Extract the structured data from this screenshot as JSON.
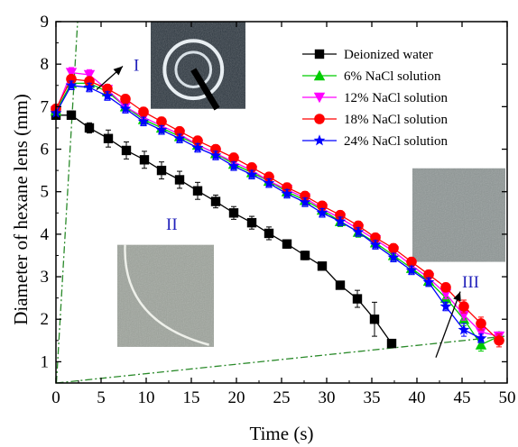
{
  "chart_data": {
    "type": "line",
    "xlabel": "Time (s)",
    "ylabel": "Diameter of hexane lens (mm)",
    "xlim": [
      0,
      50
    ],
    "ylim": [
      0.5,
      9
    ],
    "xticks": [
      0,
      5,
      10,
      15,
      20,
      25,
      30,
      35,
      40,
      45,
      50
    ],
    "yticks": [
      1,
      2,
      3,
      4,
      5,
      6,
      7,
      8,
      9
    ],
    "legend_position": "top-right",
    "grid": false,
    "series": [
      {
        "name": "Deionized water",
        "color": "#000000",
        "marker": "square",
        "x": [
          0,
          1.7,
          3.7,
          5.8,
          7.8,
          9.8,
          11.7,
          13.7,
          15.7,
          17.7,
          19.7,
          21.7,
          23.6,
          25.6,
          27.6,
          29.5,
          31.5,
          33.4,
          35.3,
          37.2
        ],
        "y": [
          6.8,
          6.8,
          6.5,
          6.25,
          5.97,
          5.75,
          5.5,
          5.28,
          5.02,
          4.77,
          4.5,
          4.27,
          4.02,
          3.77,
          3.5,
          3.25,
          2.8,
          2.48,
          2.0,
          1.43
        ],
        "err": [
          0,
          0.1,
          0.12,
          0.2,
          0.2,
          0.2,
          0.2,
          0.2,
          0.2,
          0.15,
          0.15,
          0.15,
          0.15,
          0.1,
          0.1,
          0,
          0.05,
          0.2,
          0.4,
          0
        ]
      },
      {
        "name": "6% NaCl solution",
        "color": "#00cc00",
        "marker": "triangle-up",
        "x": [
          0,
          1.7,
          3.7,
          5.7,
          7.7,
          9.7,
          11.7,
          13.7,
          15.7,
          17.7,
          19.7,
          21.7,
          23.6,
          25.6,
          27.6,
          29.5,
          31.5,
          33.5,
          35.4,
          37.4,
          39.4,
          41.3,
          43.2,
          45.2,
          47.1,
          49.1
        ],
        "y": [
          6.9,
          7.55,
          7.55,
          7.35,
          7.0,
          6.7,
          6.5,
          6.3,
          6.1,
          5.9,
          5.65,
          5.45,
          5.25,
          5.0,
          4.8,
          4.57,
          4.3,
          4.05,
          3.8,
          3.5,
          3.2,
          2.9,
          2.5,
          2.0,
          1.4,
          1.6
        ],
        "err": [
          0,
          0.15,
          0.12,
          0.12,
          0.12,
          0.12,
          0.12,
          0.12,
          0.12,
          0.12,
          0.12,
          0.12,
          0.12,
          0.12,
          0.12,
          0.12,
          0.12,
          0.12,
          0.12,
          0.12,
          0.12,
          0.12,
          0.12,
          0.15,
          0.15,
          0.1
        ]
      },
      {
        "name": "12% NaCl solution",
        "color": "#ff00ff",
        "marker": "triangle-down",
        "x": [
          0,
          1.7,
          3.7,
          5.7,
          7.7,
          9.7,
          11.7,
          13.7,
          15.7,
          17.7,
          19.7,
          21.7,
          23.6,
          25.6,
          27.6,
          29.5,
          31.5,
          33.5,
          35.4,
          37.4,
          39.4,
          41.3,
          43.2,
          45.2,
          47.1,
          49.1
        ],
        "y": [
          6.9,
          7.8,
          7.75,
          7.4,
          7.0,
          6.75,
          6.55,
          6.35,
          6.1,
          5.9,
          5.7,
          5.5,
          5.25,
          5.05,
          4.85,
          4.6,
          4.38,
          4.12,
          3.87,
          3.6,
          3.27,
          2.97,
          2.6,
          2.1,
          1.7,
          1.6
        ],
        "err": [
          0,
          0.12,
          0.12,
          0.12,
          0.12,
          0.12,
          0.12,
          0.12,
          0.12,
          0.12,
          0.12,
          0.12,
          0.12,
          0.12,
          0.12,
          0.12,
          0.12,
          0.12,
          0.12,
          0.12,
          0.12,
          0.12,
          0.12,
          0.12,
          0.1,
          0.1
        ]
      },
      {
        "name": "18% NaCl solution",
        "color": "#ff0000",
        "marker": "circle",
        "x": [
          0,
          1.7,
          3.7,
          5.7,
          7.7,
          9.7,
          11.7,
          13.7,
          15.7,
          17.7,
          19.7,
          21.7,
          23.6,
          25.6,
          27.6,
          29.5,
          31.5,
          33.5,
          35.4,
          37.4,
          39.4,
          41.3,
          43.2,
          45.2,
          47.1,
          49.1
        ],
        "y": [
          6.95,
          7.65,
          7.6,
          7.42,
          7.18,
          6.88,
          6.65,
          6.42,
          6.2,
          6.0,
          5.8,
          5.57,
          5.35,
          5.1,
          4.9,
          4.67,
          4.45,
          4.2,
          3.92,
          3.67,
          3.35,
          3.05,
          2.75,
          2.3,
          1.9,
          1.5
        ],
        "err": [
          0,
          0.1,
          0.1,
          0.1,
          0.1,
          0.1,
          0.1,
          0.1,
          0.1,
          0.1,
          0.1,
          0.1,
          0.1,
          0.1,
          0.1,
          0.1,
          0.1,
          0.1,
          0.1,
          0.1,
          0.1,
          0.1,
          0.1,
          0.15,
          0.15,
          0.15
        ]
      },
      {
        "name": "24% NaCl solution",
        "color": "#0000ff",
        "marker": "star",
        "x": [
          0,
          1.7,
          3.7,
          5.7,
          7.7,
          9.7,
          11.7,
          13.7,
          15.7,
          17.7,
          19.7,
          21.7,
          23.6,
          25.6,
          27.6,
          29.5,
          31.5,
          33.5,
          35.4,
          37.4,
          39.4,
          41.3,
          43.2,
          45.2,
          47.1
        ],
        "y": [
          6.85,
          7.5,
          7.45,
          7.25,
          6.95,
          6.65,
          6.45,
          6.25,
          6.03,
          5.85,
          5.6,
          5.4,
          5.2,
          4.95,
          4.75,
          4.5,
          4.3,
          4.05,
          3.75,
          3.45,
          3.15,
          2.87,
          2.3,
          1.75,
          1.55
        ],
        "err": [
          0,
          0.1,
          0.1,
          0.1,
          0.1,
          0.1,
          0.1,
          0.1,
          0.1,
          0.1,
          0.1,
          0.1,
          0.1,
          0.1,
          0.1,
          0.1,
          0.1,
          0.1,
          0.1,
          0.1,
          0.1,
          0.1,
          0.1,
          0.15,
          0.1
        ]
      }
    ],
    "annotations": [
      {
        "text": "I",
        "x": 8.6,
        "y": 7.85,
        "color": "#2222bb"
      },
      {
        "text": "II",
        "x": 12.2,
        "y": 4.1,
        "color": "#2222bb"
      },
      {
        "text": "III",
        "x": 45,
        "y": 2.75,
        "color": "#2222bb"
      }
    ],
    "arrows": [
      {
        "x1": 4.5,
        "y1": 7.4,
        "x2": 7.4,
        "y2": 7.95
      },
      {
        "x1": 42.1,
        "y1": 1.1,
        "x2": 44.8,
        "y2": 2.65
      }
    ],
    "reference_lines": [
      {
        "x1": 0.05,
        "y1": 0.5,
        "x2": 2.4,
        "y2": 9,
        "color": "#2a8a2a",
        "style": "dash-dot"
      },
      {
        "x1": 0.05,
        "y1": 0.5,
        "x2": 49.7,
        "y2": 1.6,
        "color": "#2a8a2a",
        "style": "dash-dot"
      }
    ],
    "insets": [
      {
        "name": "inset-image-1",
        "x0": 10.5,
        "x1": 21.0,
        "y0": 6.95,
        "y1": 9.0,
        "tone": "#2d3740"
      },
      {
        "name": "inset-image-2",
        "x0": 6.8,
        "x1": 17.5,
        "y0": 1.35,
        "y1": 3.75,
        "tone": "#9ea49c"
      },
      {
        "name": "inset-image-3",
        "x0": 39.5,
        "x1": 49.8,
        "y0": 3.35,
        "y1": 5.55,
        "tone": "#8e9695"
      }
    ]
  }
}
